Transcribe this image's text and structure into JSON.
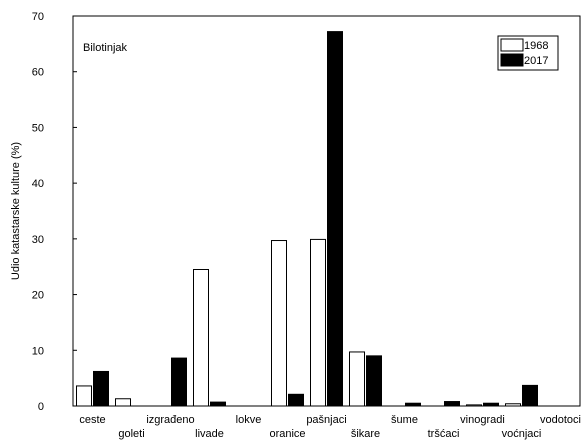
{
  "chart_data": {
    "type": "bar",
    "title": "",
    "annotation": "Bilotinjak",
    "ylabel": "Udio katastarske kulture (%)",
    "xlabel": "",
    "ylim": [
      0,
      70
    ],
    "yticks": [
      0,
      10,
      20,
      30,
      40,
      50,
      60,
      70
    ],
    "categories": [
      "ceste",
      "goleti",
      "izgrađeno",
      "livade",
      "lokve",
      "oranice",
      "pašnjaci",
      "šikare",
      "šume",
      "tršćaci",
      "vinogradi",
      "voćnjaci",
      "vodotoci"
    ],
    "series": [
      {
        "name": "1968",
        "color": "#ffffff",
        "values": [
          3.6,
          1.3,
          0,
          24.5,
          0,
          29.7,
          29.9,
          9.7,
          0,
          0,
          0.2,
          0.4,
          0
        ]
      },
      {
        "name": "2017",
        "color": "#000000",
        "values": [
          6.2,
          0,
          8.6,
          0.7,
          0,
          2.1,
          67.2,
          9.0,
          0.5,
          0.8,
          0.5,
          3.7,
          0
        ]
      }
    ],
    "legend": "top-right",
    "grid": false
  }
}
